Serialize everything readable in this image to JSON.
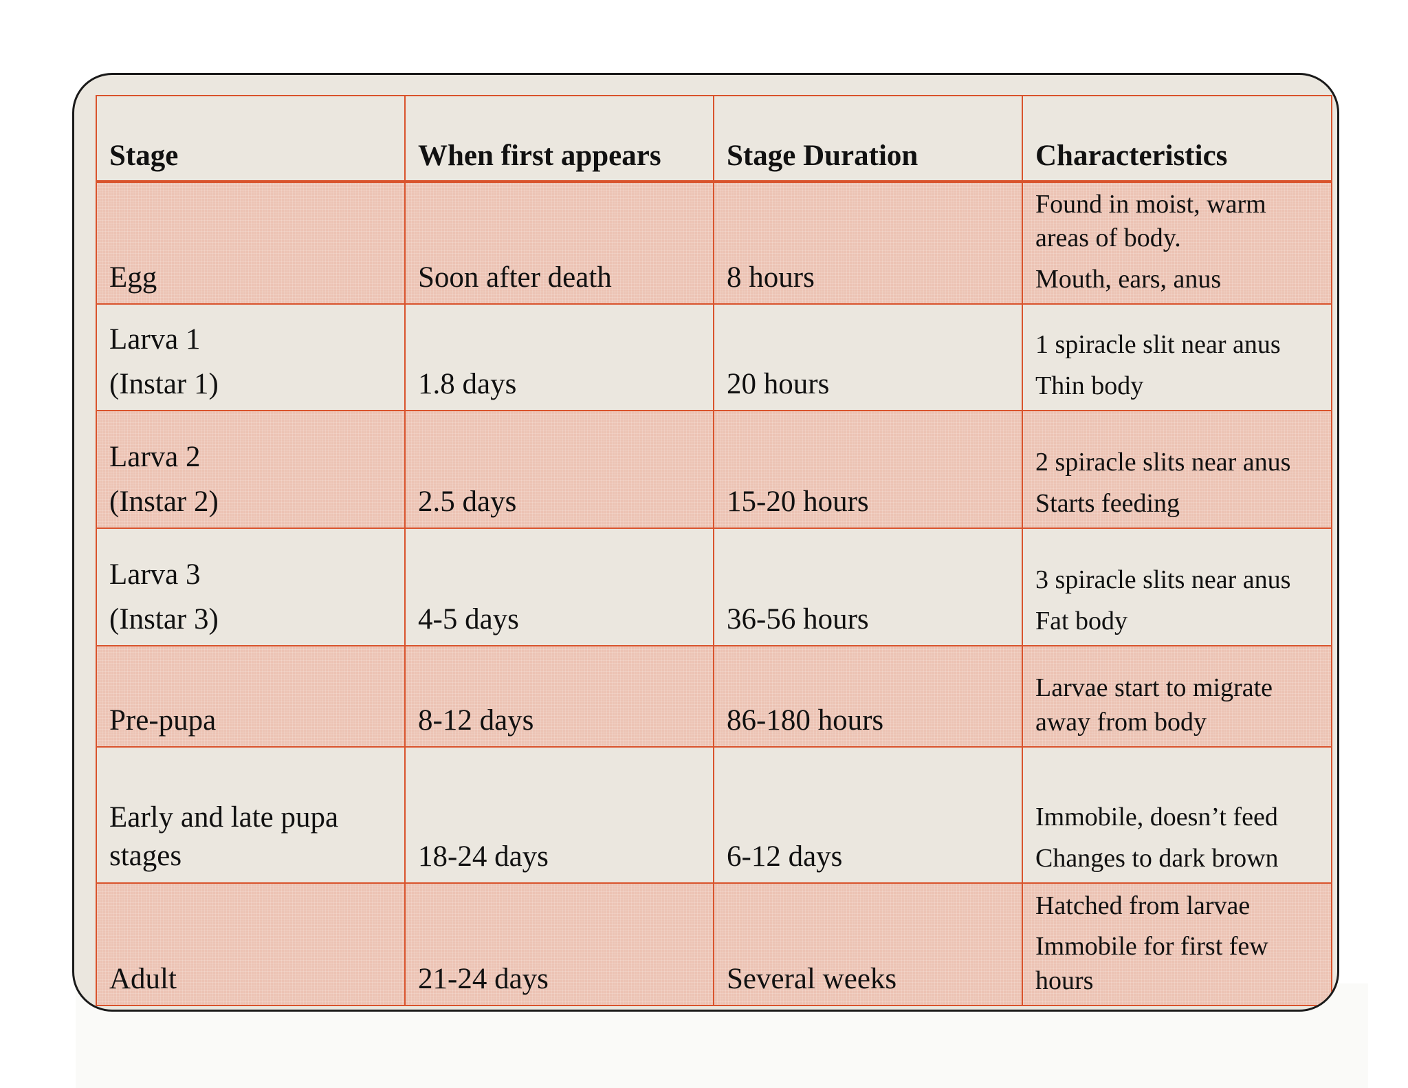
{
  "table": {
    "headers": [
      "Stage",
      "When first appears",
      "Stage Duration",
      "Characteristics"
    ],
    "rows": [
      {
        "stage": [
          "Egg"
        ],
        "first_appears": "Soon after death",
        "duration": "8 hours",
        "characteristics": [
          "Found in moist, warm",
          "areas of body.",
          "Mouth, ears, anus"
        ]
      },
      {
        "stage": [
          "Larva 1",
          "(Instar 1)"
        ],
        "first_appears": "1.8 days",
        "duration": "20 hours",
        "characteristics": [
          "1 spiracle slit near anus",
          "Thin body"
        ]
      },
      {
        "stage": [
          "Larva 2",
          "(Instar 2)"
        ],
        "first_appears": "2.5 days",
        "duration": "15-20 hours",
        "characteristics": [
          "2 spiracle slits near anus",
          "Starts feeding"
        ]
      },
      {
        "stage": [
          "Larva 3",
          "(Instar 3)"
        ],
        "first_appears": "4-5 days",
        "duration": "36-56 hours",
        "characteristics": [
          "3 spiracle slits near anus",
          "Fat body"
        ]
      },
      {
        "stage": [
          "Pre-pupa"
        ],
        "first_appears": "8-12 days",
        "duration": "86-180 hours",
        "characteristics": [
          "Larvae start to migrate",
          "away from body"
        ]
      },
      {
        "stage": [
          "Early and late pupa",
          "stages"
        ],
        "first_appears": "18-24 days",
        "duration": "6-12 days",
        "characteristics": [
          "Immobile, doesn’t feed",
          "Changes to dark brown"
        ]
      },
      {
        "stage": [
          "Adult"
        ],
        "first_appears": "21-24 days",
        "duration": "Several weeks",
        "characteristics": [
          "Hatched from larvae",
          "Immobile for first few",
          "hours"
        ]
      }
    ]
  },
  "colors": {
    "border": "#d9532c",
    "shaded_row": "#ecc3b4",
    "plain_row": "#ebe7df",
    "card_outline": "#1a1a1a"
  }
}
